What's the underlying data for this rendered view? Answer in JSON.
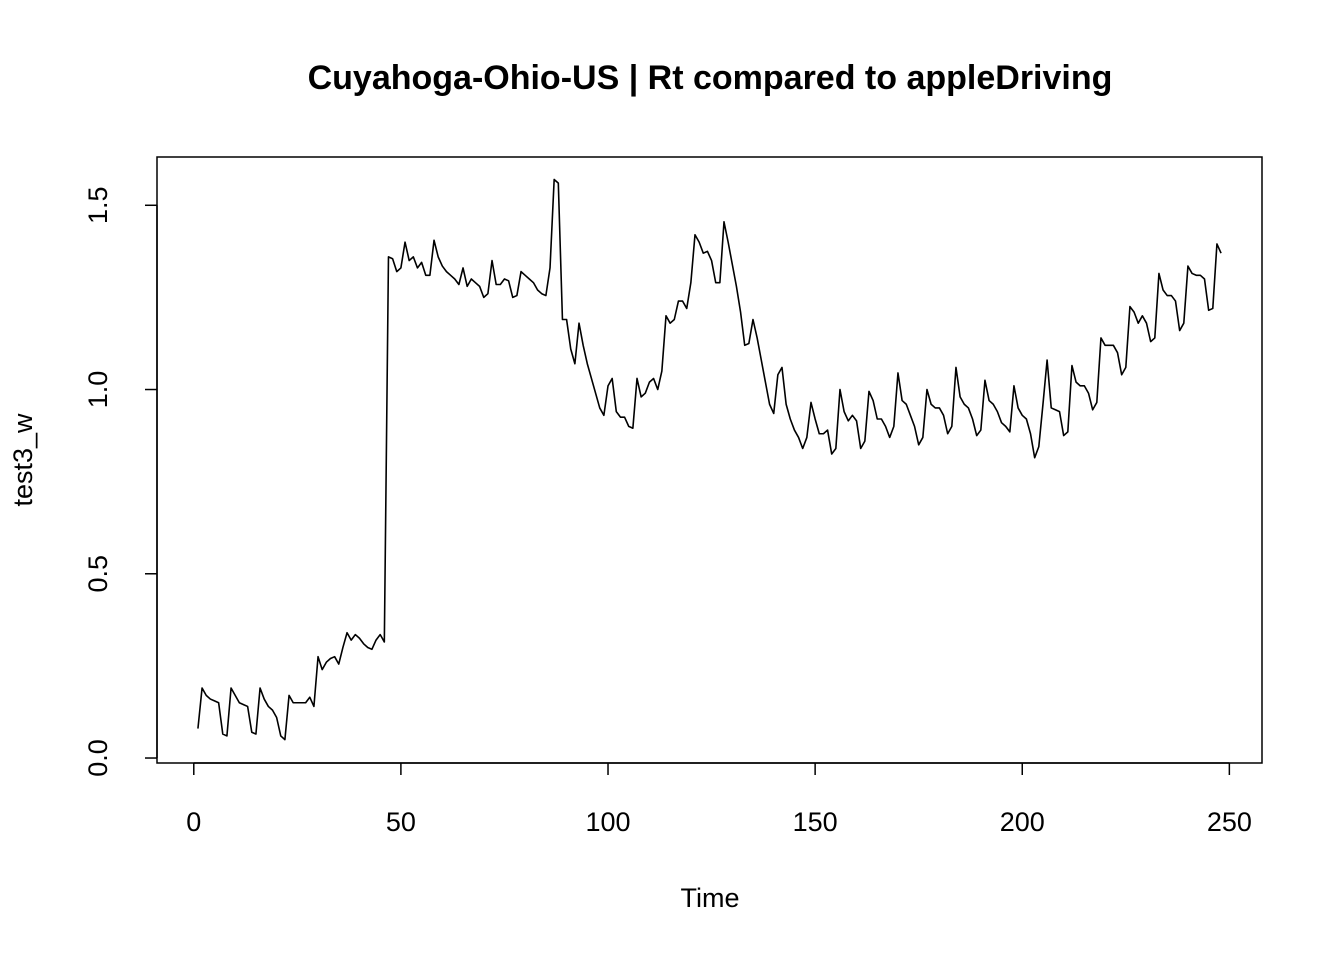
{
  "chart_data": {
    "type": "line",
    "title": "Cuyahoga-Ohio-US | Rt compared to appleDriving",
    "xlabel": "Time",
    "ylabel": "test3_w",
    "x": [
      1,
      2,
      3,
      4,
      5,
      6,
      7,
      8,
      9,
      10,
      11,
      12,
      13,
      14,
      15,
      16,
      17,
      18,
      19,
      20,
      21,
      22,
      23,
      24,
      25,
      26,
      27,
      28,
      29,
      30,
      31,
      32,
      33,
      34,
      35,
      36,
      37,
      38,
      39,
      40,
      41,
      42,
      43,
      44,
      45,
      46,
      47,
      48,
      49,
      50,
      51,
      52,
      53,
      54,
      55,
      56,
      57,
      58,
      59,
      60,
      61,
      62,
      63,
      64,
      65,
      66,
      67,
      68,
      69,
      70,
      71,
      72,
      73,
      74,
      75,
      76,
      77,
      78,
      79,
      80,
      81,
      82,
      83,
      84,
      85,
      86,
      87,
      88,
      89,
      90,
      91,
      92,
      93,
      94,
      95,
      96,
      97,
      98,
      99,
      100,
      101,
      102,
      103,
      104,
      105,
      106,
      107,
      108,
      109,
      110,
      111,
      112,
      113,
      114,
      115,
      116,
      117,
      118,
      119,
      120,
      121,
      122,
      123,
      124,
      125,
      126,
      127,
      128,
      129,
      130,
      131,
      132,
      133,
      134,
      135,
      136,
      137,
      138,
      139,
      140,
      141,
      142,
      143,
      144,
      145,
      146,
      147,
      148,
      149,
      150,
      151,
      152,
      153,
      154,
      155,
      156,
      157,
      158,
      159,
      160,
      161,
      162,
      163,
      164,
      165,
      166,
      167,
      168,
      169,
      170,
      171,
      172,
      173,
      174,
      175,
      176,
      177,
      178,
      179,
      180,
      181,
      182,
      183,
      184,
      185,
      186,
      187,
      188,
      189,
      190,
      191,
      192,
      193,
      194,
      195,
      196,
      197,
      198,
      199,
      200,
      201,
      202,
      203,
      204,
      205,
      206,
      207,
      208,
      209,
      210,
      211,
      212,
      213,
      214,
      215,
      216,
      217,
      218,
      219,
      220,
      221,
      222,
      223,
      224,
      225,
      226,
      227,
      228,
      229,
      230,
      231,
      232,
      233,
      234,
      235,
      236,
      237,
      238,
      239,
      240,
      241,
      242,
      243,
      244,
      245,
      246,
      247,
      248
    ],
    "series": [
      {
        "name": "test3_w",
        "color": "#000000",
        "values": [
          0.08,
          0.19,
          0.17,
          0.16,
          0.155,
          0.15,
          0.065,
          0.06,
          0.19,
          0.17,
          0.15,
          0.145,
          0.14,
          0.07,
          0.065,
          0.19,
          0.16,
          0.14,
          0.13,
          0.11,
          0.06,
          0.05,
          0.17,
          0.15,
          0.15,
          0.15,
          0.15,
          0.165,
          0.14,
          0.275,
          0.24,
          0.26,
          0.27,
          0.275,
          0.255,
          0.3,
          0.34,
          0.32,
          0.335,
          0.325,
          0.31,
          0.3,
          0.295,
          0.32,
          0.335,
          0.315,
          1.36,
          1.355,
          1.32,
          1.33,
          1.4,
          1.35,
          1.36,
          1.33,
          1.345,
          1.31,
          1.31,
          1.405,
          1.36,
          1.335,
          1.32,
          1.31,
          1.3,
          1.285,
          1.33,
          1.28,
          1.3,
          1.29,
          1.28,
          1.25,
          1.26,
          1.35,
          1.285,
          1.285,
          1.3,
          1.295,
          1.25,
          1.255,
          1.32,
          1.31,
          1.3,
          1.29,
          1.27,
          1.26,
          1.255,
          1.33,
          1.57,
          1.56,
          1.19,
          1.19,
          1.11,
          1.07,
          1.18,
          1.12,
          1.07,
          1.03,
          0.99,
          0.95,
          0.93,
          1.01,
          1.03,
          0.94,
          0.925,
          0.925,
          0.9,
          0.895,
          1.03,
          0.98,
          0.99,
          1.02,
          1.03,
          1.0,
          1.05,
          1.2,
          1.18,
          1.19,
          1.24,
          1.24,
          1.22,
          1.29,
          1.42,
          1.4,
          1.37,
          1.375,
          1.35,
          1.29,
          1.29,
          1.455,
          1.4,
          1.34,
          1.28,
          1.21,
          1.12,
          1.125,
          1.19,
          1.14,
          1.08,
          1.02,
          0.96,
          0.935,
          1.04,
          1.06,
          0.96,
          0.92,
          0.89,
          0.87,
          0.84,
          0.87,
          0.965,
          0.92,
          0.88,
          0.88,
          0.89,
          0.825,
          0.84,
          1.0,
          0.94,
          0.915,
          0.93,
          0.915,
          0.84,
          0.86,
          0.995,
          0.97,
          0.92,
          0.92,
          0.9,
          0.87,
          0.9,
          1.045,
          0.97,
          0.96,
          0.93,
          0.9,
          0.85,
          0.87,
          1.0,
          0.96,
          0.95,
          0.95,
          0.93,
          0.88,
          0.9,
          1.06,
          0.98,
          0.96,
          0.95,
          0.92,
          0.875,
          0.89,
          1.025,
          0.97,
          0.96,
          0.94,
          0.91,
          0.9,
          0.885,
          1.01,
          0.95,
          0.93,
          0.92,
          0.88,
          0.815,
          0.845,
          0.96,
          1.08,
          0.95,
          0.945,
          0.94,
          0.875,
          0.885,
          1.065,
          1.02,
          1.01,
          1.01,
          0.99,
          0.945,
          0.965,
          1.14,
          1.12,
          1.12,
          1.12,
          1.1,
          1.04,
          1.06,
          1.225,
          1.21,
          1.18,
          1.2,
          1.18,
          1.13,
          1.14,
          1.315,
          1.27,
          1.255,
          1.255,
          1.24,
          1.16,
          1.18,
          1.335,
          1.315,
          1.31,
          1.31,
          1.3,
          1.215,
          1.22,
          1.395,
          1.37
        ]
      }
    ],
    "xlim": [
      -8.88,
      257.88
    ],
    "xticks": [
      0,
      50,
      100,
      150,
      200,
      250
    ],
    "ylim": [
      -0.0135,
      1.631
    ],
    "yticks": [
      {
        "value": 0,
        "label": "0.0"
      },
      0.5,
      {
        "value": 1,
        "label": "1.0"
      },
      1.5
    ]
  }
}
